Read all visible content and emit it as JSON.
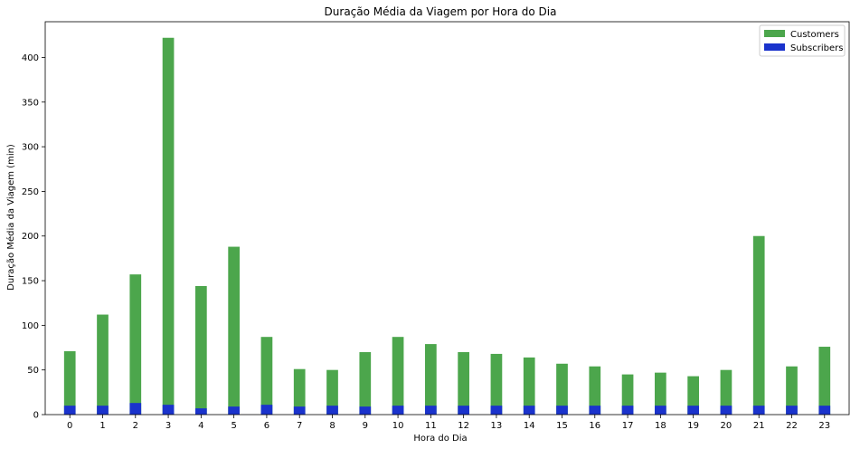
{
  "chart_data": {
    "type": "bar",
    "title": "Duração Média da Viagem por Hora do Dia",
    "xlabel": "Hora do Dia",
    "ylabel": "Duração Média da Viagem (min)",
    "categories": [
      "0",
      "1",
      "2",
      "3",
      "4",
      "5",
      "6",
      "7",
      "8",
      "9",
      "10",
      "11",
      "12",
      "13",
      "14",
      "15",
      "16",
      "17",
      "18",
      "19",
      "20",
      "21",
      "22",
      "23"
    ],
    "ylim": [
      0,
      440
    ],
    "yticks": [
      0,
      50,
      100,
      150,
      200,
      250,
      300,
      350,
      400
    ],
    "grid": false,
    "legend_position": "top-right",
    "series": [
      {
        "name": "Customers",
        "color": "#4ca64c",
        "values": [
          71,
          112,
          157,
          422,
          144,
          188,
          87,
          51,
          50,
          70,
          87,
          79,
          70,
          68,
          64,
          57,
          54,
          45,
          47,
          43,
          50,
          200,
          54,
          76
        ]
      },
      {
        "name": "Subscribers",
        "color": "#1a33cc",
        "values": [
          10,
          10,
          13,
          11,
          7,
          9,
          11,
          9,
          10,
          9,
          10,
          10,
          10,
          10,
          10,
          10,
          10,
          10,
          10,
          10,
          10,
          10,
          10,
          10
        ]
      }
    ]
  }
}
